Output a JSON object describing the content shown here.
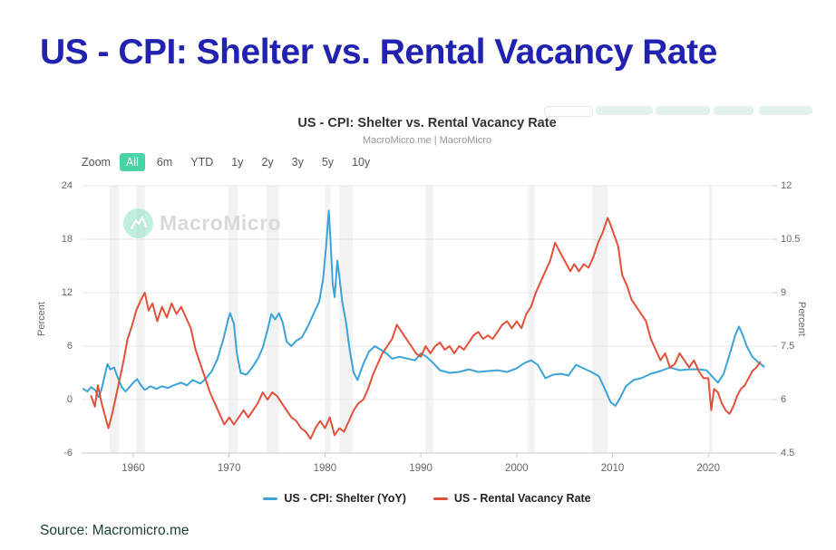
{
  "page": {
    "main_title": "US - CPI: Shelter vs. Rental Vacancy Rate",
    "source_label": "Source: Macromicro.me"
  },
  "colors": {
    "main_title": "#2222b0",
    "cpi_shelter_line": "#3ba3d8",
    "vacancy_line": "#e1503a",
    "active_zoom_button": "#47d3a5",
    "gridline": "#e7e7e7",
    "axis_line": "#c9c9c9",
    "recession_band": "#e8e8e8",
    "source_text": "#173f35"
  },
  "chart": {
    "title": "US - CPI: Shelter vs. Rental Vacancy Rate",
    "subtitle": "MacroMicro.me | MacroMicro",
    "watermark": "MacroMicro",
    "toolbar": {
      "zoom_label": "Zoom",
      "buttons": [
        "All",
        "6m",
        "YTD",
        "1y",
        "2y",
        "3y",
        "5y",
        "10y"
      ],
      "active": "All"
    },
    "left_axis": {
      "label": "Percent",
      "ticks": [
        24,
        18,
        12,
        6,
        0,
        -6
      ]
    },
    "right_axis": {
      "label": "Percent",
      "ticks": [
        12,
        10.5,
        9,
        7.5,
        6,
        4.5
      ]
    },
    "x_axis": {
      "ticks": [
        1960,
        1970,
        1980,
        1990,
        2000,
        2010,
        2020
      ]
    },
    "legend": [
      {
        "label": "US - CPI: Shelter (YoY)",
        "color": "#3ba3d8"
      },
      {
        "label": "US - Rental Vacancy Rate",
        "color": "#e1503a"
      }
    ]
  },
  "chart_data": {
    "type": "line",
    "title": "US - CPI: Shelter vs. Rental Vacancy Rate",
    "subtitle": "MacroMicro.me | MacroMicro",
    "xlabel": "",
    "x_range": [
      1954.6,
      2026.7
    ],
    "left_axis": {
      "ylabel": "Percent",
      "ylim": [
        -6,
        24
      ],
      "ticks": [
        24,
        18,
        12,
        6,
        0,
        -6
      ]
    },
    "right_axis": {
      "ylabel": "Percent",
      "ylim": [
        4.5,
        12
      ],
      "ticks": [
        12,
        10.5,
        9,
        7.5,
        6,
        4.5
      ]
    },
    "grid": true,
    "legend_position": "bottom",
    "recession_bands": [
      [
        1957.5,
        1958.5
      ],
      [
        1960.3,
        1961.2
      ],
      [
        1969.9,
        1970.9
      ],
      [
        1973.9,
        1975.2
      ],
      [
        1980.0,
        1980.6
      ],
      [
        1981.5,
        1982.9
      ],
      [
        1990.5,
        1991.3
      ],
      [
        2001.2,
        2001.9
      ],
      [
        2007.9,
        2009.5
      ],
      [
        2020.05,
        2020.4
      ]
    ],
    "series": [
      {
        "name": "US - CPI: Shelter (YoY)",
        "axis": "left",
        "color": "#3ba3d8",
        "points": [
          [
            1954.8,
            1.2
          ],
          [
            1955.2,
            0.9
          ],
          [
            1955.6,
            1.4
          ],
          [
            1956.0,
            1.1
          ],
          [
            1956.4,
            0.3
          ],
          [
            1956.7,
            1.2
          ],
          [
            1957.0,
            2.6
          ],
          [
            1957.3,
            4.0
          ],
          [
            1957.6,
            3.4
          ],
          [
            1958.0,
            3.6
          ],
          [
            1958.4,
            2.4
          ],
          [
            1958.8,
            1.4
          ],
          [
            1959.2,
            0.9
          ],
          [
            1959.6,
            1.4
          ],
          [
            1960.0,
            1.9
          ],
          [
            1960.4,
            2.3
          ],
          [
            1960.8,
            1.6
          ],
          [
            1961.2,
            1.1
          ],
          [
            1961.8,
            1.5
          ],
          [
            1962.4,
            1.2
          ],
          [
            1963.0,
            1.5
          ],
          [
            1963.6,
            1.3
          ],
          [
            1964.2,
            1.6
          ],
          [
            1965.0,
            1.9
          ],
          [
            1965.6,
            1.6
          ],
          [
            1966.2,
            2.2
          ],
          [
            1967.0,
            1.8
          ],
          [
            1967.6,
            2.4
          ],
          [
            1968.2,
            3.2
          ],
          [
            1968.8,
            4.6
          ],
          [
            1969.4,
            6.8
          ],
          [
            1969.9,
            9.0
          ],
          [
            1970.1,
            9.7
          ],
          [
            1970.5,
            8.5
          ],
          [
            1970.8,
            5.2
          ],
          [
            1971.2,
            3.0
          ],
          [
            1971.8,
            2.8
          ],
          [
            1972.4,
            3.6
          ],
          [
            1973.0,
            4.6
          ],
          [
            1973.5,
            5.8
          ],
          [
            1974.0,
            7.8
          ],
          [
            1974.4,
            9.6
          ],
          [
            1974.8,
            9.0
          ],
          [
            1975.2,
            9.7
          ],
          [
            1975.6,
            8.6
          ],
          [
            1976.0,
            6.5
          ],
          [
            1976.5,
            6.0
          ],
          [
            1977.0,
            6.6
          ],
          [
            1977.6,
            7.0
          ],
          [
            1978.2,
            8.2
          ],
          [
            1978.8,
            9.6
          ],
          [
            1979.4,
            11.0
          ],
          [
            1979.8,
            13.5
          ],
          [
            1980.1,
            17.0
          ],
          [
            1980.4,
            21.2
          ],
          [
            1980.6,
            17.5
          ],
          [
            1980.8,
            13.0
          ],
          [
            1981.0,
            11.5
          ],
          [
            1981.3,
            15.6
          ],
          [
            1981.5,
            13.8
          ],
          [
            1981.8,
            11.0
          ],
          [
            1982.2,
            8.6
          ],
          [
            1982.6,
            5.4
          ],
          [
            1983.0,
            3.0
          ],
          [
            1983.4,
            2.2
          ],
          [
            1984.0,
            4.0
          ],
          [
            1984.6,
            5.4
          ],
          [
            1985.2,
            6.0
          ],
          [
            1985.8,
            5.6
          ],
          [
            1986.4,
            5.2
          ],
          [
            1987.0,
            4.6
          ],
          [
            1987.8,
            4.8
          ],
          [
            1988.6,
            4.6
          ],
          [
            1989.4,
            4.4
          ],
          [
            1990.0,
            5.2
          ],
          [
            1990.6,
            4.8
          ],
          [
            1991.2,
            4.2
          ],
          [
            1992.0,
            3.3
          ],
          [
            1993.0,
            3.0
          ],
          [
            1994.0,
            3.1
          ],
          [
            1995.0,
            3.4
          ],
          [
            1996.0,
            3.1
          ],
          [
            1997.0,
            3.2
          ],
          [
            1998.0,
            3.3
          ],
          [
            1999.0,
            3.1
          ],
          [
            2000.0,
            3.5
          ],
          [
            2000.8,
            4.1
          ],
          [
            2001.5,
            4.4
          ],
          [
            2002.2,
            3.9
          ],
          [
            2003.0,
            2.4
          ],
          [
            2003.8,
            2.8
          ],
          [
            2004.6,
            2.9
          ],
          [
            2005.4,
            2.7
          ],
          [
            2006.2,
            3.9
          ],
          [
            2007.0,
            3.5
          ],
          [
            2007.8,
            3.1
          ],
          [
            2008.6,
            2.6
          ],
          [
            2009.2,
            1.2
          ],
          [
            2009.8,
            -0.3
          ],
          [
            2010.3,
            -0.7
          ],
          [
            2010.8,
            0.2
          ],
          [
            2011.4,
            1.5
          ],
          [
            2012.2,
            2.2
          ],
          [
            2013.0,
            2.4
          ],
          [
            2014.0,
            2.9
          ],
          [
            2015.0,
            3.2
          ],
          [
            2016.0,
            3.6
          ],
          [
            2017.0,
            3.3
          ],
          [
            2018.0,
            3.4
          ],
          [
            2019.0,
            3.4
          ],
          [
            2019.8,
            3.3
          ],
          [
            2020.4,
            2.6
          ],
          [
            2021.0,
            1.9
          ],
          [
            2021.6,
            2.9
          ],
          [
            2022.2,
            5.0
          ],
          [
            2022.8,
            7.2
          ],
          [
            2023.2,
            8.2
          ],
          [
            2023.6,
            7.2
          ],
          [
            2024.0,
            6.0
          ],
          [
            2024.6,
            4.8
          ],
          [
            2025.2,
            4.2
          ],
          [
            2025.8,
            3.7
          ]
        ]
      },
      {
        "name": "US - Rental Vacancy Rate",
        "axis": "right",
        "color": "#e1503a",
        "points": [
          [
            1955.6,
            6.1
          ],
          [
            1956.0,
            5.8
          ],
          [
            1956.3,
            6.4
          ],
          [
            1956.7,
            5.9
          ],
          [
            1957.1,
            5.5
          ],
          [
            1957.4,
            5.2
          ],
          [
            1957.8,
            5.6
          ],
          [
            1958.2,
            6.1
          ],
          [
            1958.6,
            6.6
          ],
          [
            1959.0,
            7.1
          ],
          [
            1959.4,
            7.7
          ],
          [
            1959.9,
            8.1
          ],
          [
            1960.3,
            8.5
          ],
          [
            1960.8,
            8.8
          ],
          [
            1961.2,
            9.0
          ],
          [
            1961.6,
            8.5
          ],
          [
            1962.0,
            8.7
          ],
          [
            1962.5,
            8.2
          ],
          [
            1963.0,
            8.6
          ],
          [
            1963.5,
            8.3
          ],
          [
            1964.0,
            8.7
          ],
          [
            1964.5,
            8.4
          ],
          [
            1965.0,
            8.6
          ],
          [
            1965.5,
            8.3
          ],
          [
            1966.0,
            8.0
          ],
          [
            1966.5,
            7.4
          ],
          [
            1967.0,
            7.0
          ],
          [
            1967.5,
            6.6
          ],
          [
            1968.0,
            6.2
          ],
          [
            1968.5,
            5.9
          ],
          [
            1969.0,
            5.6
          ],
          [
            1969.5,
            5.3
          ],
          [
            1970.0,
            5.5
          ],
          [
            1970.5,
            5.3
          ],
          [
            1971.0,
            5.5
          ],
          [
            1971.5,
            5.7
          ],
          [
            1972.0,
            5.5
          ],
          [
            1972.5,
            5.7
          ],
          [
            1973.0,
            5.9
          ],
          [
            1973.5,
            6.2
          ],
          [
            1974.0,
            6.0
          ],
          [
            1974.5,
            6.2
          ],
          [
            1975.0,
            6.1
          ],
          [
            1975.5,
            5.9
          ],
          [
            1976.0,
            5.7
          ],
          [
            1976.5,
            5.5
          ],
          [
            1977.0,
            5.4
          ],
          [
            1977.5,
            5.2
          ],
          [
            1978.0,
            5.1
          ],
          [
            1978.5,
            4.9
          ],
          [
            1979.0,
            5.2
          ],
          [
            1979.5,
            5.4
          ],
          [
            1980.0,
            5.2
          ],
          [
            1980.5,
            5.5
          ],
          [
            1981.0,
            5.0
          ],
          [
            1981.5,
            5.2
          ],
          [
            1982.0,
            5.1
          ],
          [
            1982.5,
            5.4
          ],
          [
            1983.0,
            5.7
          ],
          [
            1983.5,
            5.9
          ],
          [
            1984.0,
            6.0
          ],
          [
            1984.5,
            6.3
          ],
          [
            1985.0,
            6.7
          ],
          [
            1985.5,
            7.0
          ],
          [
            1986.0,
            7.3
          ],
          [
            1986.5,
            7.5
          ],
          [
            1987.0,
            7.7
          ],
          [
            1987.5,
            8.1
          ],
          [
            1988.0,
            7.9
          ],
          [
            1988.5,
            7.7
          ],
          [
            1989.0,
            7.5
          ],
          [
            1989.5,
            7.3
          ],
          [
            1990.0,
            7.2
          ],
          [
            1990.5,
            7.5
          ],
          [
            1991.0,
            7.3
          ],
          [
            1991.5,
            7.5
          ],
          [
            1992.0,
            7.6
          ],
          [
            1992.5,
            7.4
          ],
          [
            1993.0,
            7.5
          ],
          [
            1993.5,
            7.3
          ],
          [
            1994.0,
            7.5
          ],
          [
            1994.5,
            7.4
          ],
          [
            1995.0,
            7.6
          ],
          [
            1995.5,
            7.8
          ],
          [
            1996.0,
            7.9
          ],
          [
            1996.5,
            7.7
          ],
          [
            1997.0,
            7.8
          ],
          [
            1997.5,
            7.7
          ],
          [
            1998.0,
            7.9
          ],
          [
            1998.5,
            8.1
          ],
          [
            1999.0,
            8.2
          ],
          [
            1999.5,
            8.0
          ],
          [
            2000.0,
            8.2
          ],
          [
            2000.5,
            8.0
          ],
          [
            2001.0,
            8.4
          ],
          [
            2001.5,
            8.6
          ],
          [
            2002.0,
            9.0
          ],
          [
            2002.5,
            9.3
          ],
          [
            2003.0,
            9.6
          ],
          [
            2003.5,
            9.9
          ],
          [
            2004.0,
            10.4
          ],
          [
            2004.4,
            10.2
          ],
          [
            2004.8,
            10.0
          ],
          [
            2005.2,
            9.8
          ],
          [
            2005.6,
            9.6
          ],
          [
            2006.0,
            9.8
          ],
          [
            2006.5,
            9.6
          ],
          [
            2007.0,
            9.8
          ],
          [
            2007.5,
            9.7
          ],
          [
            2008.0,
            10.0
          ],
          [
            2008.5,
            10.4
          ],
          [
            2009.0,
            10.7
          ],
          [
            2009.5,
            11.1
          ],
          [
            2009.8,
            10.9
          ],
          [
            2010.2,
            10.6
          ],
          [
            2010.6,
            10.3
          ],
          [
            2011.0,
            9.5
          ],
          [
            2011.5,
            9.2
          ],
          [
            2012.0,
            8.8
          ],
          [
            2012.5,
            8.6
          ],
          [
            2013.0,
            8.4
          ],
          [
            2013.5,
            8.2
          ],
          [
            2014.0,
            7.7
          ],
          [
            2014.5,
            7.4
          ],
          [
            2015.0,
            7.1
          ],
          [
            2015.5,
            7.3
          ],
          [
            2016.0,
            6.9
          ],
          [
            2016.5,
            7.0
          ],
          [
            2017.0,
            7.3
          ],
          [
            2017.5,
            7.1
          ],
          [
            2018.0,
            6.9
          ],
          [
            2018.5,
            7.1
          ],
          [
            2019.0,
            6.8
          ],
          [
            2019.5,
            6.6
          ],
          [
            2020.0,
            6.6
          ],
          [
            2020.3,
            5.7
          ],
          [
            2020.6,
            6.3
          ],
          [
            2021.0,
            6.2
          ],
          [
            2021.4,
            5.9
          ],
          [
            2021.8,
            5.7
          ],
          [
            2022.2,
            5.6
          ],
          [
            2022.6,
            5.8
          ],
          [
            2023.0,
            6.1
          ],
          [
            2023.4,
            6.3
          ],
          [
            2023.8,
            6.4
          ],
          [
            2024.2,
            6.6
          ],
          [
            2024.6,
            6.8
          ],
          [
            2025.0,
            6.9
          ],
          [
            2025.4,
            7.05
          ]
        ]
      }
    ]
  }
}
